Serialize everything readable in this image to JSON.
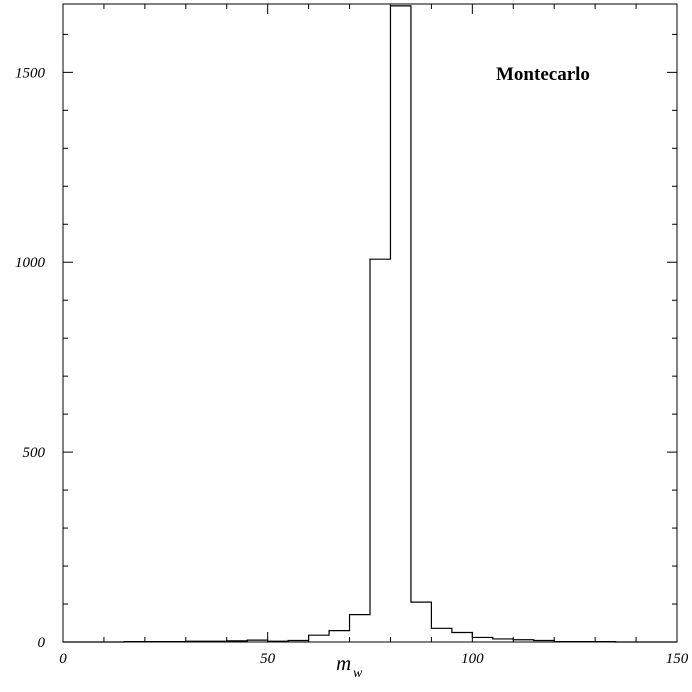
{
  "chart_data": {
    "type": "histogram",
    "title": "",
    "annotation": "Montecarlo",
    "xlabel": "m",
    "xlabel_subscript": "w",
    "ylabel": "",
    "xlim": [
      0,
      150
    ],
    "ylim": [
      0,
      1680
    ],
    "grid": false,
    "x_ticks": [
      {
        "value": 0,
        "label": "0"
      },
      {
        "value": 50,
        "label": "50"
      },
      {
        "value": 100,
        "label": "100"
      },
      {
        "value": 150,
        "label": "150"
      }
    ],
    "y_ticks": [
      {
        "value": 0,
        "label": "0"
      },
      {
        "value": 500,
        "label": "500"
      },
      {
        "value": 1000,
        "label": "1000"
      },
      {
        "value": 1500,
        "label": "1500"
      }
    ],
    "bin_width": 5,
    "bin_edges_start": [
      0,
      5,
      10,
      15,
      20,
      25,
      30,
      35,
      40,
      45,
      50,
      55,
      60,
      65,
      70,
      75,
      80,
      85,
      90,
      95,
      100,
      105,
      110,
      115,
      120,
      125,
      130,
      135,
      140,
      145
    ],
    "values": [
      0,
      0,
      0,
      1,
      1,
      1,
      2,
      2,
      3,
      5,
      2,
      4,
      18,
      30,
      72,
      1008,
      1675,
      105,
      36,
      25,
      12,
      8,
      6,
      4,
      1,
      1,
      1,
      0,
      0,
      0
    ]
  }
}
